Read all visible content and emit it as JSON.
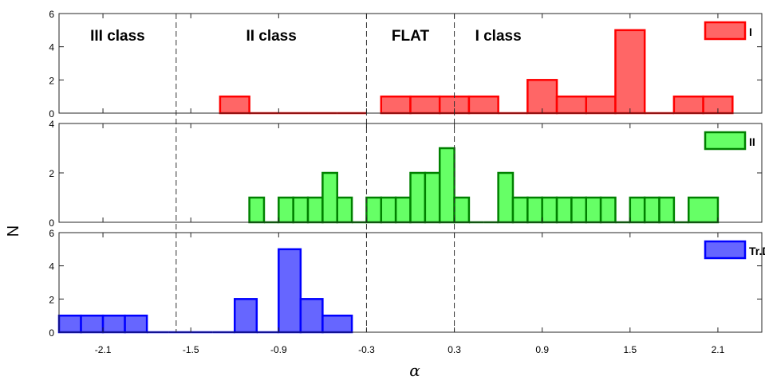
{
  "chart_data": {
    "type": "bar",
    "xlabel": "α",
    "ylabel": "N",
    "xlim": [
      -2.4,
      2.4
    ],
    "bin_width": 0.2,
    "x_ticks": [
      -2.1,
      -1.5,
      -0.9,
      -0.3,
      0.3,
      0.9,
      1.5,
      2.1
    ],
    "x_tick_labels": [
      "-2.1",
      "-1.5",
      "-0.9",
      "-0.3",
      "0.3",
      "0.9",
      "1.5",
      "2.1"
    ],
    "boundaries": [
      -1.6,
      -0.3,
      0.3
    ],
    "region_labels": [
      {
        "text": "III class",
        "x": -2.0
      },
      {
        "text": "II class",
        "x": -0.95
      },
      {
        "text": "FLAT",
        "x": 0.0
      },
      {
        "text": "I class",
        "x": 0.6
      }
    ],
    "panels": [
      {
        "name": "I",
        "color": "#ff6666",
        "edge": "#ff0000",
        "ylim": [
          0,
          6
        ],
        "yticks": [
          0,
          2,
          4,
          6
        ],
        "bins": [
          [
            -1.3,
            1
          ],
          [
            -1.1,
            0
          ],
          [
            -0.9,
            0
          ],
          [
            -0.7,
            0
          ],
          [
            -0.5,
            0
          ],
          [
            -0.2,
            1
          ],
          [
            0.0,
            1
          ],
          [
            0.2,
            1
          ],
          [
            0.4,
            1
          ],
          [
            0.6,
            0
          ],
          [
            0.8,
            2
          ],
          [
            1.0,
            1
          ],
          [
            1.2,
            1
          ],
          [
            1.4,
            5
          ],
          [
            1.6,
            0
          ],
          [
            1.8,
            1
          ],
          [
            2.0,
            1
          ]
        ]
      },
      {
        "name": "II",
        "color": "#66ff66",
        "edge": "#008000",
        "ylim": [
          0,
          4
        ],
        "yticks": [
          0,
          2,
          4
        ],
        "bins": [
          [
            -1.1,
            1
          ],
          [
            -1.0,
            0
          ],
          [
            -0.9,
            1
          ],
          [
            -0.8,
            1
          ],
          [
            -0.7,
            1
          ],
          [
            -0.6,
            2
          ],
          [
            -0.5,
            1
          ],
          [
            -0.4,
            0
          ],
          [
            -0.3,
            1
          ],
          [
            -0.2,
            1
          ],
          [
            -0.1,
            1
          ],
          [
            0.0,
            2
          ],
          [
            0.1,
            2
          ],
          [
            0.2,
            3
          ],
          [
            0.3,
            1
          ],
          [
            0.4,
            0
          ],
          [
            0.5,
            0
          ],
          [
            0.6,
            2
          ],
          [
            0.7,
            1
          ],
          [
            0.8,
            1
          ],
          [
            0.9,
            1
          ],
          [
            1.0,
            1
          ],
          [
            1.1,
            1
          ],
          [
            1.2,
            1
          ],
          [
            1.3,
            1
          ],
          [
            1.4,
            0
          ],
          [
            1.5,
            1
          ],
          [
            1.6,
            1
          ],
          [
            1.7,
            1
          ],
          [
            1.8,
            0
          ],
          [
            1.9,
            1
          ]
        ]
      },
      {
        "name": "Tr.D",
        "color": "#6666ff",
        "edge": "#0000ff",
        "ylim": [
          0,
          6
        ],
        "yticks": [
          0,
          2,
          4,
          6
        ],
        "bins": [
          [
            -2.4,
            1
          ],
          [
            -2.25,
            1
          ],
          [
            -2.1,
            1
          ],
          [
            -1.95,
            1
          ],
          [
            -1.8,
            0
          ],
          [
            -1.65,
            0
          ],
          [
            -1.5,
            0
          ],
          [
            -1.35,
            0
          ],
          [
            -1.2,
            2
          ],
          [
            -1.05,
            0
          ],
          [
            -0.9,
            5
          ],
          [
            -0.75,
            2
          ],
          [
            -0.6,
            1
          ]
        ]
      }
    ]
  }
}
